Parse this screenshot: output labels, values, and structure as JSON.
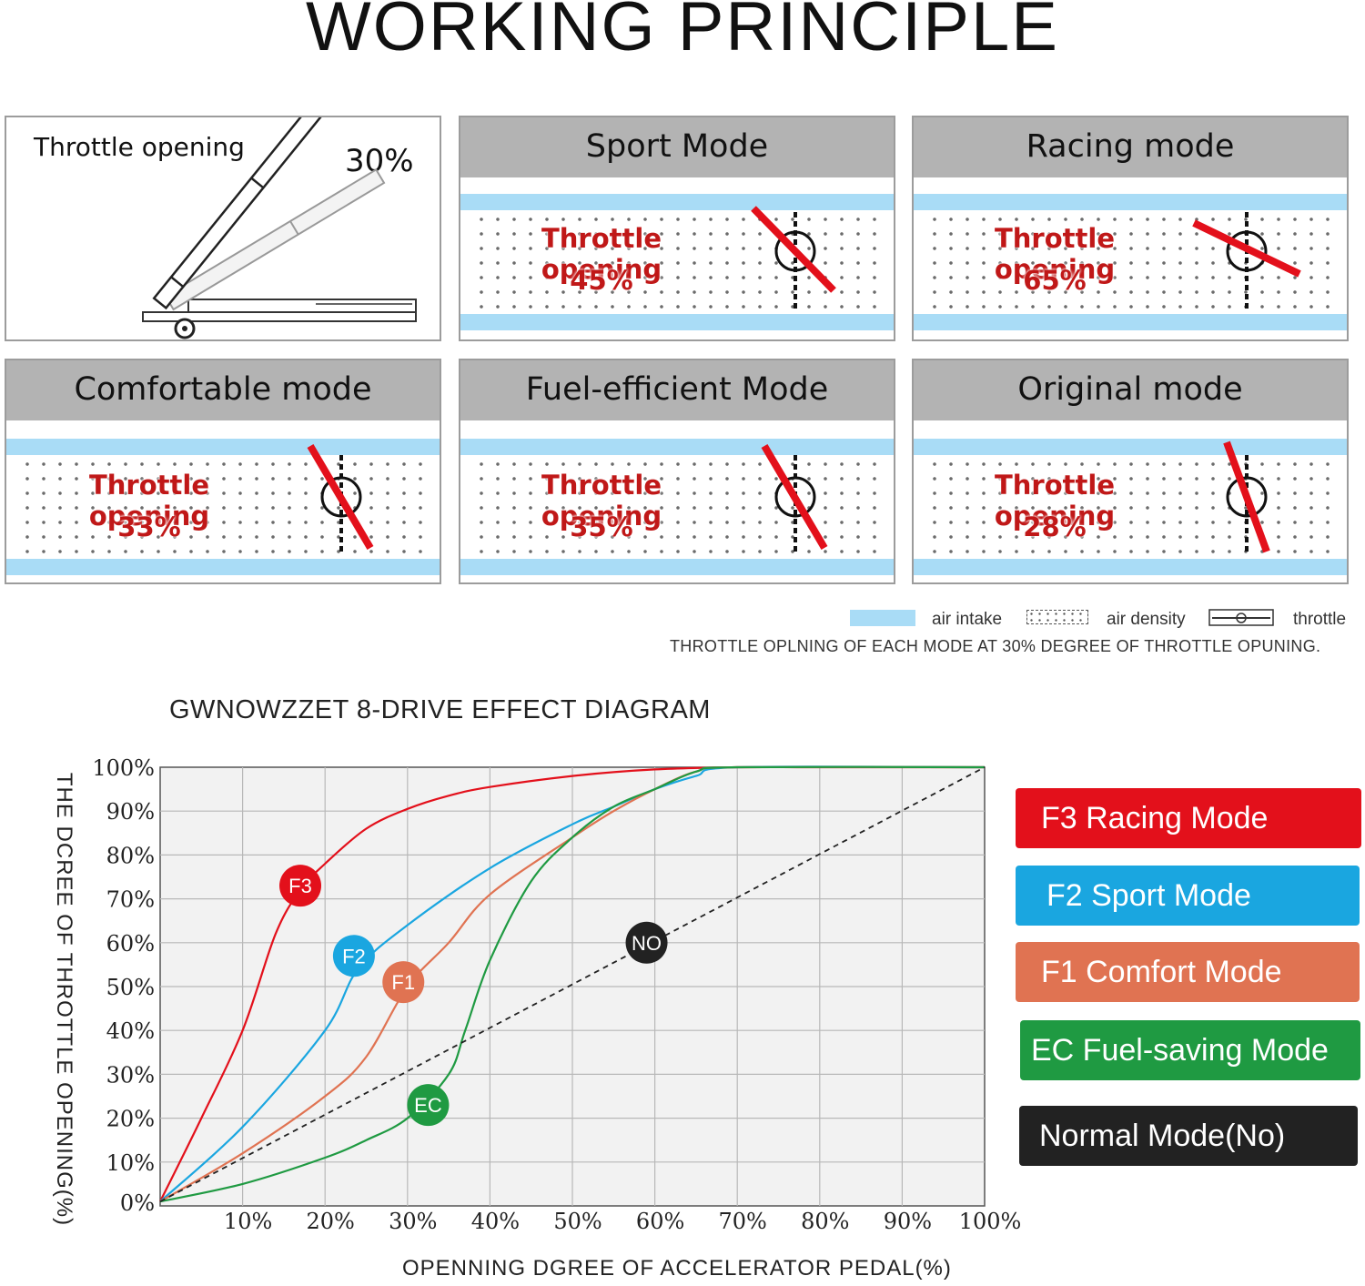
{
  "title": "WORKING PRINCIPLE",
  "intro": {
    "label": "Throttle opening",
    "percent": "30%"
  },
  "modes": [
    {
      "name": "Sport Mode",
      "label": "Throttle opening",
      "percent": "45%"
    },
    {
      "name": "Racing mode",
      "label": "Throttle opening",
      "percent": "65%"
    },
    {
      "name": "Comfortable mode",
      "label": "Throttle opening",
      "percent": "33%"
    },
    {
      "name": "Fuel-efficient Mode",
      "label": "Throttle opening",
      "percent": "35%"
    },
    {
      "name": "Original mode",
      "label": "Throttle opening",
      "percent": "28%"
    }
  ],
  "legend": {
    "air_intake": "air intake",
    "air_density": "air density",
    "throttle": "throttle"
  },
  "caption": "THROTTLE OPLNING OF EACH MODE AT 30% DEGREE OF THROTTLE OPUNING.",
  "colors": {
    "racing": "#e3101b",
    "sport": "#1aa6e0",
    "comfort": "#e07352",
    "eco": "#1f9a42",
    "normal": "#222222",
    "air_band": "#a9dcf6"
  },
  "chart_data": {
    "type": "line",
    "title": "GWNOWZZET 8-DRIVE EFFECT DIAGRAM",
    "xlabel": "OPENNING DGREE OF ACCELERATOR PEDAL(%)",
    "ylabel": "THE DCREE OF THROTTLE OPENING(%)",
    "xlim": [
      0,
      100
    ],
    "ylim": [
      0,
      100
    ],
    "x_ticks": [
      "10%",
      "20%",
      "30%",
      "40%",
      "50%",
      "60%",
      "70%",
      "80%",
      "90%",
      "100%"
    ],
    "y_ticks": [
      "0%",
      "10%",
      "20%",
      "30%",
      "40%",
      "50%",
      "60%",
      "70%",
      "80%",
      "90%",
      "100%"
    ],
    "grid": true,
    "series": [
      {
        "name": "F3 Racing Mode",
        "marker": "F3",
        "color": "#e3101b",
        "x": [
          0,
          5,
          10,
          14,
          17,
          20,
          25,
          30,
          35,
          40,
          50,
          60,
          70,
          80,
          100
        ],
        "y": [
          1,
          20,
          40,
          62,
          72,
          78,
          86,
          90.5,
          93.5,
          95.5,
          98,
          99.5,
          100,
          100,
          100
        ]
      },
      {
        "name": "F2 Sport Mode",
        "marker": "F2",
        "color": "#1aa6e0",
        "x": [
          0,
          10,
          20,
          24,
          30,
          40,
          50,
          55,
          60,
          65,
          70,
          100
        ],
        "y": [
          1,
          18,
          40,
          54,
          64,
          77,
          87,
          91,
          95,
          98,
          100,
          100
        ]
      },
      {
        "name": "F1 Comfort Mode",
        "marker": "F1",
        "color": "#e07352",
        "x": [
          0,
          10,
          20,
          25,
          30,
          35,
          40,
          50,
          55,
          60,
          65,
          70,
          100
        ],
        "y": [
          1,
          12,
          25,
          34,
          50,
          60,
          71,
          84,
          90,
          95,
          99,
          100,
          100
        ]
      },
      {
        "name": "EC Fuel-saving Mode",
        "marker": "EC",
        "color": "#1f9a42",
        "x": [
          0,
          10,
          20,
          25,
          30,
          35,
          37,
          40,
          45,
          50,
          55,
          60,
          65,
          70,
          100
        ],
        "y": [
          1,
          5,
          11,
          15,
          20,
          30,
          40,
          56,
          74,
          84,
          91,
          95,
          99,
          100,
          100
        ]
      },
      {
        "name": "Normal Mode(No)",
        "marker": "NO",
        "color": "#222222",
        "dashed": true,
        "x": [
          0,
          100
        ],
        "y": [
          1,
          100
        ]
      }
    ]
  }
}
